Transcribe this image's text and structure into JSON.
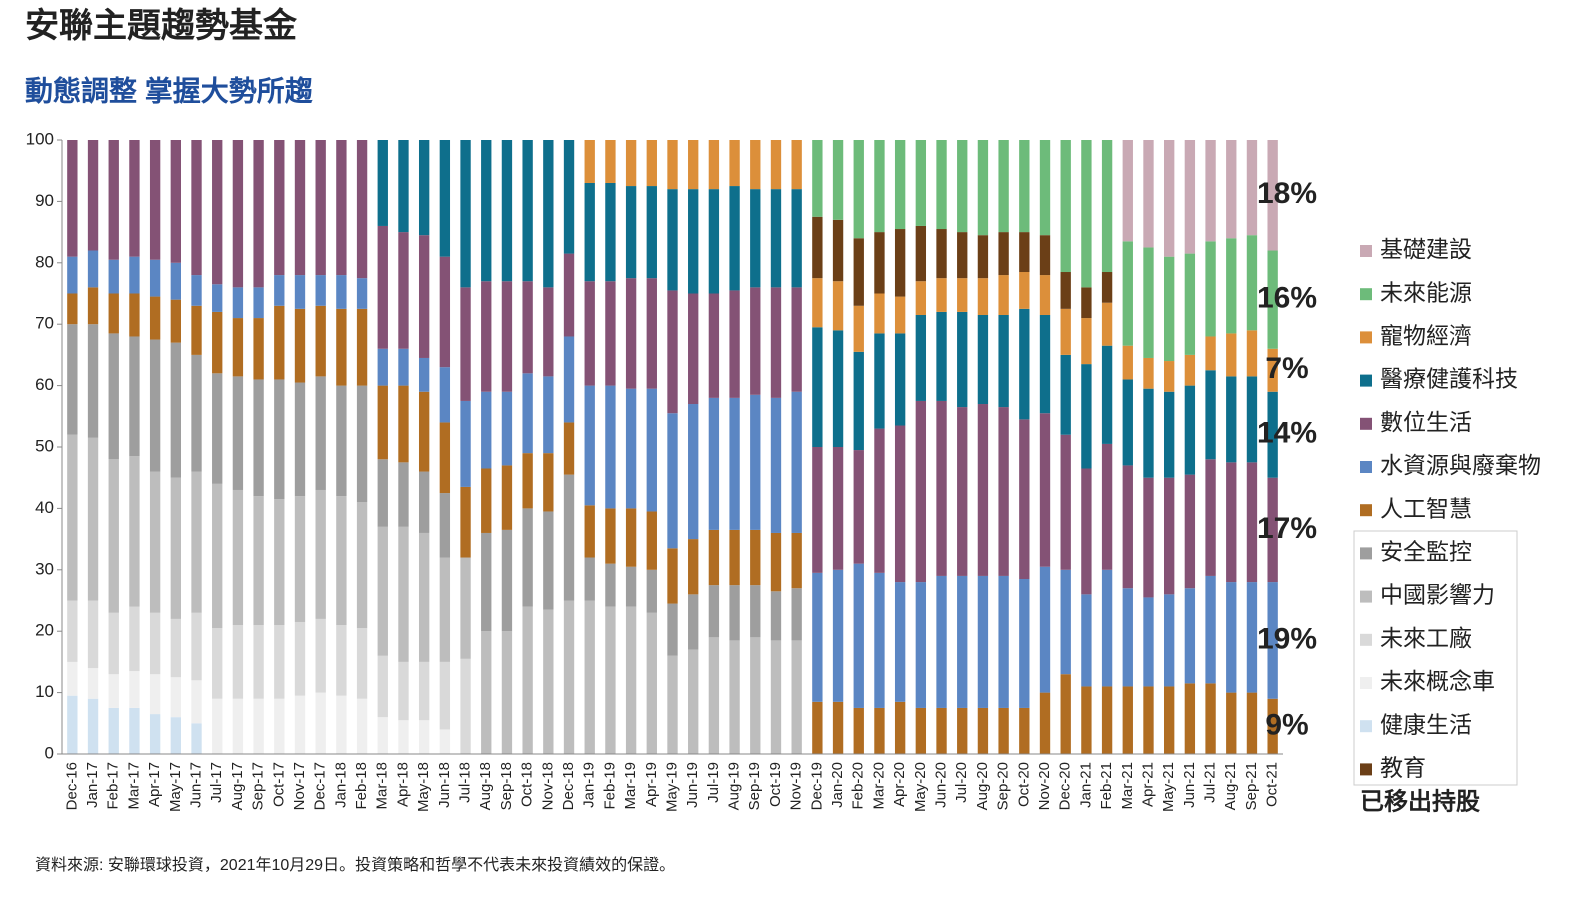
{
  "chart_data": {
    "type": "stacked_bar",
    "title": "安聯主題趨勢基金",
    "subtitle": "動態調整  掌握大勢所趨",
    "footnote": "資料來源: 安聯環球投資，2021年10月29日。投資策略和哲學不代表未來投資績效的保證。",
    "removed_label": "已移出持股",
    "categories": [
      "Dec-16",
      "Jan-17",
      "Feb-17",
      "Mar-17",
      "Apr-17",
      "May-17",
      "Jun-17",
      "Jul-17",
      "Aug-17",
      "Sep-17",
      "Oct-17",
      "Nov-17",
      "Dec-17",
      "Jan-18",
      "Feb-18",
      "Mar-18",
      "Apr-18",
      "May-18",
      "Jun-18",
      "Jul-18",
      "Aug-18",
      "Sep-18",
      "Oct-18",
      "Nov-18",
      "Dec-18",
      "Jan-19",
      "Feb-19",
      "Mar-19",
      "Apr-19",
      "May-19",
      "Jun-19",
      "Jul-19",
      "Aug-19",
      "Sep-19",
      "Oct-19",
      "Nov-19",
      "Dec-19",
      "Jan-20",
      "Feb-20",
      "Mar-20",
      "Apr-20",
      "May-20",
      "Jun-20",
      "Jul-20",
      "Aug-20",
      "Sep-20",
      "Oct-20",
      "Nov-20",
      "Dec-20",
      "Jan-21",
      "Feb-21",
      "Mar-21",
      "Apr-21",
      "May-21",
      "Jun-21",
      "Jul-21",
      "Aug-21",
      "Sep-21",
      "Oct-21"
    ],
    "series": [
      {
        "name": "基礎建設",
        "color": "#c9a9b4",
        "values": [
          0,
          0,
          0,
          0,
          0,
          0,
          0,
          0,
          0,
          0,
          0,
          0,
          0,
          0,
          0,
          0,
          0,
          0,
          0,
          0,
          0,
          0,
          0,
          0,
          0,
          0,
          0,
          0,
          0,
          0,
          0,
          0,
          0,
          0,
          0,
          0,
          0,
          0,
          0,
          0,
          0,
          0,
          0,
          0,
          0,
          0,
          0,
          0,
          0,
          0,
          0,
          16.5,
          17.5,
          19,
          18.5,
          16.5,
          16,
          15.5,
          18
        ]
      },
      {
        "name": "未來能源",
        "color": "#6dbb7a",
        "values": [
          0,
          0,
          0,
          0,
          0,
          0,
          0,
          0,
          0,
          0,
          0,
          0,
          0,
          0,
          0,
          0,
          0,
          0,
          0,
          0,
          0,
          0,
          0,
          0,
          0,
          0,
          0,
          0,
          0,
          0,
          0,
          0,
          0,
          0,
          0,
          0,
          12.5,
          13,
          16,
          15,
          14.5,
          14,
          14.5,
          15,
          15.5,
          15,
          15,
          15.5,
          21.5,
          24,
          21.5,
          17,
          18,
          17,
          16.5,
          15.5,
          15.5,
          15.5,
          16
        ]
      },
      {
        "name": "寵物經濟",
        "color": "#dc8f3a",
        "values": [
          0,
          0,
          0,
          0,
          0,
          0,
          0,
          0,
          0,
          0,
          0,
          0,
          0,
          0,
          0,
          0,
          0,
          0,
          0,
          0,
          0,
          0,
          0,
          0,
          0,
          7,
          7,
          7.5,
          7.5,
          8,
          8,
          8,
          7.5,
          8,
          8,
          8,
          8,
          8,
          7.5,
          6.5,
          6,
          5.5,
          5.5,
          5.5,
          6,
          6.5,
          6,
          6.5,
          7.5,
          7.5,
          7,
          5.5,
          5,
          5,
          5,
          5.5,
          7,
          7.5,
          7
        ]
      },
      {
        "name": "醫療健護科技",
        "color": "#0e6f8c",
        "values": [
          0,
          0,
          0,
          0,
          0,
          0,
          0,
          0,
          0,
          0,
          0,
          0,
          0,
          0,
          0,
          14,
          15,
          15.5,
          19,
          24,
          23,
          23,
          23,
          24,
          18.5,
          16,
          16,
          15,
          15,
          16.5,
          17,
          17,
          17,
          16,
          16,
          16,
          19.5,
          19,
          16,
          15.5,
          15,
          14,
          14.5,
          15.5,
          14.5,
          15,
          18,
          16,
          13,
          17,
          16,
          14,
          14.5,
          14,
          14.5,
          14.5,
          14,
          14,
          14
        ]
      },
      {
        "name": "數位生活",
        "color": "#845275",
        "values": [
          19,
          18,
          19.5,
          19,
          19.5,
          20,
          22,
          23.5,
          24,
          24,
          22,
          22,
          22,
          22,
          22.5,
          20,
          19,
          20,
          18,
          18.5,
          18,
          18,
          15,
          14.5,
          13.5,
          17,
          17,
          18,
          18,
          20,
          18,
          17,
          17.5,
          17.5,
          18,
          17,
          20.5,
          20,
          18.5,
          23.5,
          25.5,
          29.5,
          28.5,
          27.5,
          28,
          27.5,
          26,
          25,
          22,
          20.5,
          20.5,
          20,
          19.5,
          19,
          18.5,
          19,
          19.5,
          19.5,
          17
        ]
      },
      {
        "name": "水資源與廢棄物",
        "color": "#5b86c3",
        "values": [
          6,
          6,
          5.5,
          6,
          6,
          6,
          5,
          4.5,
          5,
          5,
          5,
          5.5,
          5,
          5.5,
          5,
          6,
          6,
          5.5,
          9,
          14,
          12.5,
          12,
          13,
          12.5,
          14,
          19.5,
          20,
          19.5,
          20,
          22,
          22,
          21.5,
          21.5,
          22,
          22,
          23,
          21,
          21.5,
          23.5,
          22,
          19.5,
          20.5,
          21.5,
          21.5,
          21.5,
          21.5,
          21,
          20.5,
          17,
          15,
          19,
          16,
          14.5,
          15,
          15.5,
          17.5,
          18,
          18,
          19
        ]
      },
      {
        "name": "人工智慧",
        "color": "#b06d22",
        "values": [
          5,
          6,
          6.5,
          7,
          7,
          7,
          8,
          10,
          9.5,
          10,
          12,
          12,
          11.5,
          12.5,
          12.5,
          12,
          12.5,
          13,
          11.5,
          11.5,
          10.5,
          10.5,
          9,
          9.5,
          8.5,
          8.5,
          9,
          9.5,
          9.5,
          9,
          9,
          9,
          9,
          9,
          9.5,
          9,
          8.5,
          8.5,
          7.5,
          7.5,
          8.5,
          7.5,
          7.5,
          7.5,
          7.5,
          7.5,
          7.5,
          10,
          13,
          11,
          11,
          11,
          11,
          11,
          11.5,
          11.5,
          10,
          10,
          9
        ]
      },
      {
        "name": "安全監控",
        "color": "#9e9e9e",
        "values": [
          18,
          18.5,
          20.5,
          19.5,
          21.5,
          22,
          19,
          18,
          18.5,
          19,
          19.5,
          18.5,
          18.5,
          18,
          19,
          11,
          10.5,
          10,
          10.5,
          0,
          16,
          16.5,
          16,
          16,
          20.5,
          7,
          7,
          6.5,
          7,
          8.5,
          9,
          8.5,
          9,
          8.5,
          8,
          8.5,
          0,
          0,
          0,
          0,
          0,
          0,
          0,
          0,
          0,
          0,
          0,
          0,
          0,
          0,
          0,
          0,
          0,
          0,
          0,
          0,
          0,
          0,
          0
        ]
      },
      {
        "name": "中國影響力",
        "color": "#bdbdbd",
        "values": [
          27,
          26.5,
          25,
          24.5,
          23,
          23,
          23,
          23.5,
          22,
          21,
          20.5,
          20.5,
          21,
          21,
          20.5,
          21,
          22,
          21,
          17,
          16.5,
          20,
          20,
          24,
          23.5,
          25,
          25,
          24,
          24,
          23,
          16,
          17,
          19,
          18.5,
          19,
          18.5,
          18.5,
          0,
          0,
          0,
          0,
          0,
          0,
          0,
          0,
          0,
          0,
          0,
          0,
          0,
          0,
          0,
          0,
          0,
          0,
          0,
          0,
          0,
          0,
          0
        ]
      },
      {
        "name": "未來工廠",
        "color": "#d9d9d9",
        "values": [
          10,
          11,
          10,
          10.5,
          10,
          9.5,
          11,
          11.5,
          12,
          12,
          12,
          12,
          12,
          11.5,
          11.5,
          10,
          9.5,
          9.5,
          11,
          15.5,
          0,
          0,
          0,
          0,
          0,
          0,
          0,
          0,
          0,
          0,
          0,
          0,
          0,
          0,
          0,
          0,
          0,
          0,
          0,
          0,
          0,
          0,
          0,
          0,
          0,
          0,
          0,
          0,
          0,
          0,
          0,
          0,
          0,
          0,
          0,
          0,
          0,
          0,
          0
        ]
      },
      {
        "name": "未來概念車",
        "color": "#efefef",
        "values": [
          5.5,
          5,
          5.5,
          6,
          6.5,
          6.5,
          7,
          9,
          9,
          9,
          9,
          9.5,
          10,
          9.5,
          9,
          6,
          5.5,
          5.5,
          4,
          0,
          0,
          0,
          0,
          0,
          0,
          0,
          0,
          0,
          0,
          0,
          0,
          0,
          0,
          0,
          0,
          0,
          0,
          0,
          0,
          0,
          0,
          0,
          0,
          0,
          0,
          0,
          0,
          0,
          0,
          0,
          0,
          0,
          0,
          0,
          0,
          0,
          0,
          0,
          0
        ]
      },
      {
        "name": "健康生活",
        "color": "#cfe1f0",
        "values": [
          9.5,
          9,
          7.5,
          7.5,
          6.5,
          6,
          5,
          0,
          0,
          0,
          0,
          0,
          0,
          0,
          0,
          0,
          0,
          0,
          0,
          0,
          0,
          0,
          0,
          0,
          0,
          0,
          0,
          0,
          0,
          0,
          0,
          0,
          0,
          0,
          0,
          0,
          0,
          0,
          0,
          0,
          0,
          0,
          0,
          0,
          0,
          0,
          0,
          0,
          0,
          0,
          0,
          0,
          0,
          0,
          0,
          0,
          0,
          0,
          0
        ]
      },
      {
        "name": "教育",
        "color": "#6b3f17",
        "values": [
          0,
          0,
          0,
          0,
          0,
          0,
          0,
          0,
          0,
          0,
          0,
          0,
          0,
          0,
          0,
          0,
          0,
          0,
          0,
          0,
          0,
          0,
          0,
          0,
          0,
          0,
          0,
          0,
          0,
          0,
          0,
          0,
          0,
          0,
          0,
          0,
          10,
          10,
          11,
          10,
          11,
          9,
          8,
          7.5,
          7,
          7,
          6.5,
          6.5,
          6,
          5,
          5,
          0,
          0,
          0,
          0,
          0,
          0,
          0,
          0
        ]
      }
    ],
    "annotations": [
      "18%",
      "16%",
      "7%",
      "14%",
      "17%",
      "19%",
      "9%"
    ],
    "ylim": [
      0,
      100
    ],
    "yticks": [
      0,
      10,
      20,
      30,
      40,
      50,
      60,
      70,
      80,
      90,
      100
    ]
  }
}
